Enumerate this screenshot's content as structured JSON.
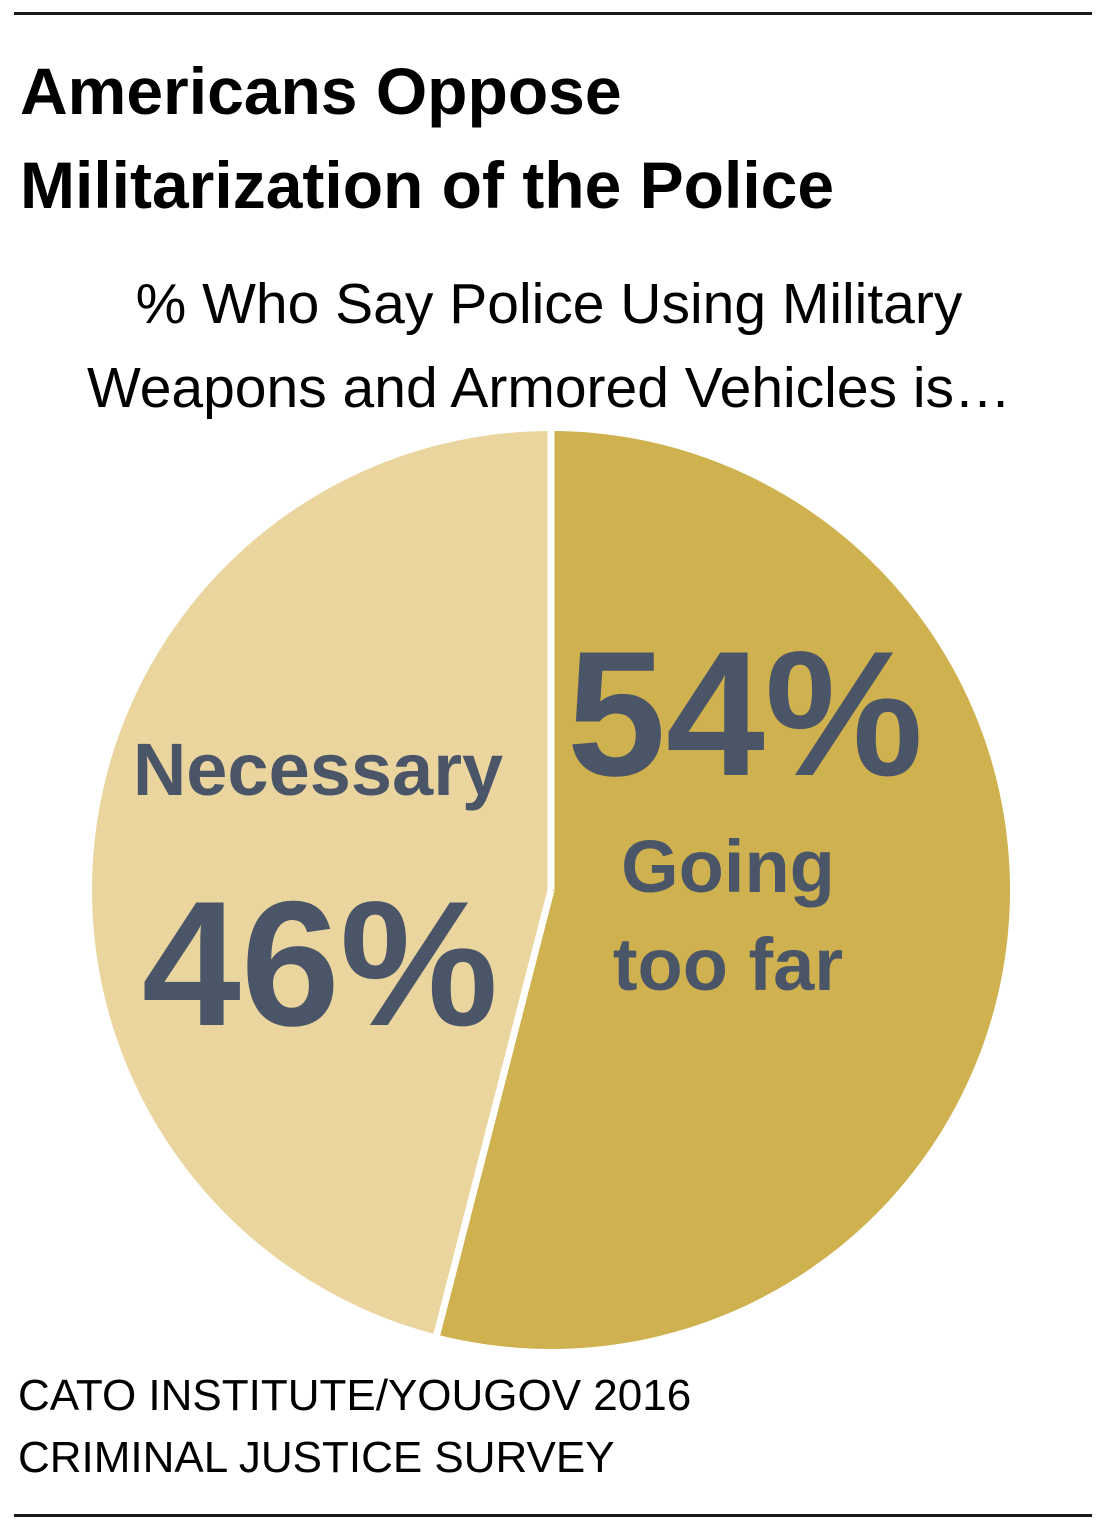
{
  "title_lines": [
    "Americans Oppose",
    "Militarization of the Police"
  ],
  "subtitle_lines": [
    "% Who Say Police Using Military",
    "Weapons and Armored Vehicles is…"
  ],
  "source_lines": [
    "CATO INSTITUTE/YOUGOV 2016",
    "CRIMINAL JUSTICE SURVEY"
  ],
  "chart_data": {
    "type": "pie",
    "title": "Americans Oppose Militarization of the Police",
    "subtitle": "% Who Say Police Using Military Weapons and Armored Vehicles is…",
    "legend": "none",
    "slices": [
      {
        "name": "Going too far",
        "label_lines": [
          "Going",
          "too far"
        ],
        "value": 54,
        "value_label": "54%",
        "color": "#CFB14F"
      },
      {
        "name": "Necessary",
        "label_lines": [
          "Necessary"
        ],
        "value": 46,
        "value_label": "46%",
        "color": "#EAD59F"
      }
    ],
    "label_color": "#4A5568",
    "separator_color": "#FFFFFF"
  }
}
